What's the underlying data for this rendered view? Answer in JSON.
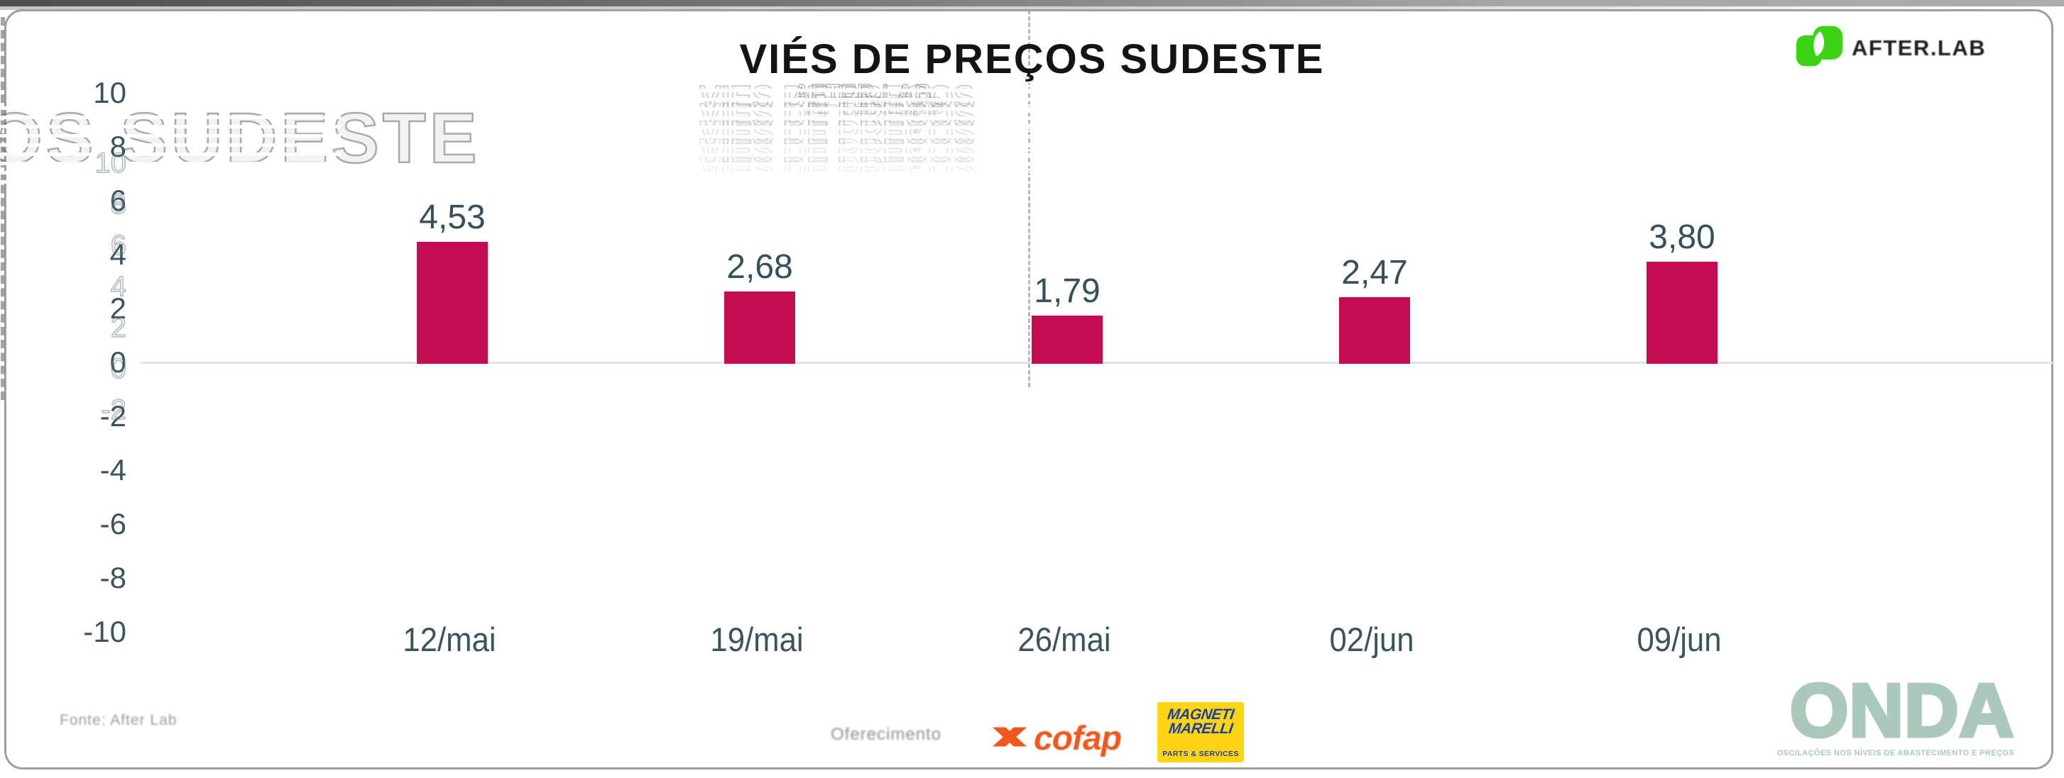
{
  "header": {
    "title": "VIÉS DE PREÇOS SUDESTE"
  },
  "branding": {
    "afterlab": {
      "name": "AFTER.LAB",
      "green": "#3cd315"
    },
    "onda": {
      "name": "ONDA",
      "tagline": "OSCILAÇÕES NOS NÍVEIS DE ABASTECIMENTO E PREÇOS",
      "color": "#abc8bc"
    }
  },
  "footer": {
    "source": "Fonte: After Lab",
    "sponsor_intro": "Oferecimento",
    "sponsors": [
      {
        "name": "cofap",
        "color": "#f0571d"
      },
      {
        "name": "Magneti Marelli",
        "lines": [
          "MAGNETI",
          "MARELLI"
        ],
        "tagline": "PARTS & SERVICES",
        "bg": "#ffd513",
        "text_color": "#1b3fa5"
      }
    ]
  },
  "artifacts": {
    "ghost_left": "OS SUDESTE",
    "ghost_title": "VIES DE PREÇOS",
    "ghost_logo": "AFTER.LAB"
  },
  "chart_data": {
    "type": "bar",
    "title": "VIÉS DE PREÇOS SUDESTE",
    "categories": [
      "12/mai",
      "19/mai",
      "26/mai",
      "02/jun",
      "09/jun"
    ],
    "values": [
      4.53,
      2.68,
      1.79,
      2.47,
      3.8
    ],
    "value_labels": [
      "4,53",
      "2,68",
      "1,79",
      "2,47",
      "3,80"
    ],
    "bar_color": "#c50b52",
    "label_color": "#3a545e",
    "xlabel": "",
    "ylabel": "",
    "ylim": [
      -10,
      10
    ],
    "yticks": [
      10,
      8,
      6,
      4,
      2,
      0,
      -2,
      -4,
      -6,
      -8,
      -10
    ],
    "grid": false,
    "zero_line": true,
    "legend": "none"
  }
}
